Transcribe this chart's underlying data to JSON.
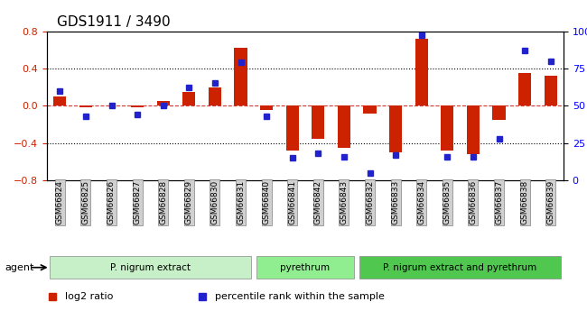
{
  "title": "GDS1911 / 3490",
  "samples": [
    "GSM66824",
    "GSM66825",
    "GSM66826",
    "GSM66827",
    "GSM66828",
    "GSM66829",
    "GSM66830",
    "GSM66831",
    "GSM66840",
    "GSM66841",
    "GSM66842",
    "GSM66843",
    "GSM66832",
    "GSM66833",
    "GSM66834",
    "GSM66835",
    "GSM66836",
    "GSM66837",
    "GSM66838",
    "GSM66839"
  ],
  "log2_ratio": [
    0.1,
    -0.02,
    0.0,
    -0.02,
    0.05,
    0.15,
    0.2,
    0.62,
    -0.05,
    -0.48,
    -0.35,
    -0.45,
    -0.08,
    -0.5,
    0.72,
    -0.48,
    -0.52,
    -0.15,
    0.35,
    0.32
  ],
  "pct_rank": [
    60,
    43,
    50,
    44,
    50,
    62,
    65,
    79,
    43,
    15,
    18,
    16,
    5,
    17,
    97,
    16,
    16,
    28,
    87,
    80
  ],
  "groups": [
    {
      "label": "P. nigrum extract",
      "start": 0,
      "end": 8,
      "color": "#c8f0c8"
    },
    {
      "label": "pyrethrum",
      "start": 8,
      "end": 12,
      "color": "#90ee90"
    },
    {
      "label": "P. nigrum extract and pyrethrum",
      "start": 12,
      "end": 20,
      "color": "#50c850"
    }
  ],
  "ylim_left": [
    -0.8,
    0.8
  ],
  "ylim_right": [
    0,
    100
  ],
  "bar_color": "#cc2200",
  "dot_color": "#2222cc",
  "ref_line_color": "#cc0000",
  "grid_color": "#000000",
  "background_color": "#ffffff",
  "agent_label": "agent"
}
